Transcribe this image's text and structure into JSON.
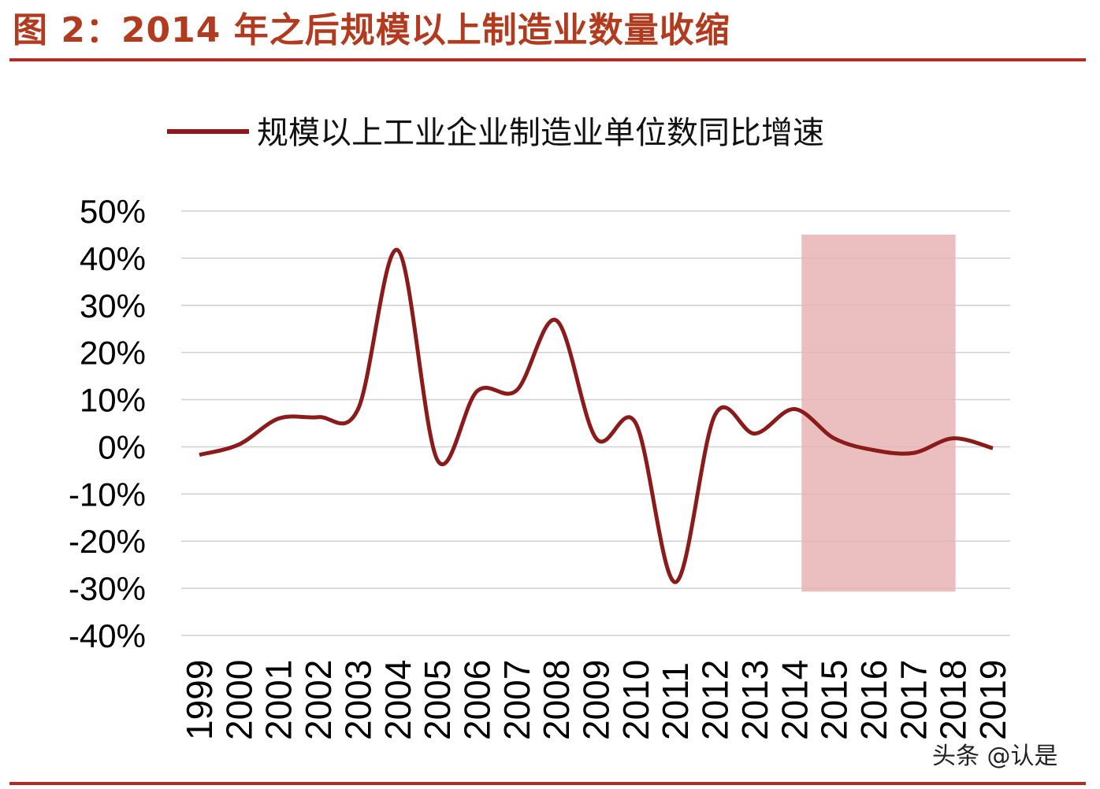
{
  "header": {
    "title": "图 2：2014 年之后规模以上制造业数量收缩"
  },
  "watermark": "头条 @认是",
  "chart_data": {
    "type": "line",
    "title": "",
    "legend": {
      "entries": [
        "规模以上工业企业制造业单位数同比增速"
      ],
      "placement": "top"
    },
    "categories": [
      "1999",
      "2000",
      "2001",
      "2002",
      "2003",
      "2004",
      "2005",
      "2006",
      "2007",
      "2008",
      "2009",
      "2010",
      "2011",
      "2012",
      "2013",
      "2014",
      "2015",
      "2016",
      "2017",
      "2018",
      "2019"
    ],
    "series": [
      {
        "name": "规模以上工业企业制造业单位数同比增速",
        "color": "#8b1a1a",
        "values": [
          -1.7,
          0.5,
          6.0,
          6.3,
          8.0,
          41.7,
          -2.8,
          11.8,
          12.0,
          26.8,
          1.8,
          5.0,
          -28.7,
          6.8,
          2.8,
          8.0,
          1.8,
          -0.7,
          -1.3,
          1.8,
          -0.3
        ]
      }
    ],
    "highlight_band": {
      "x_from": "2014",
      "x_to": "2018",
      "y_from": -30.7,
      "y_to": 45,
      "color": "#e8b4b4"
    },
    "yticks": [
      "50%",
      "40%",
      "30%",
      "20%",
      "10%",
      "0%",
      "-10%",
      "-20%",
      "-30%",
      "-40%"
    ],
    "ytick_values": [
      50,
      40,
      30,
      20,
      10,
      0,
      -10,
      -20,
      -30,
      -40
    ],
    "ylim": [
      -40,
      50
    ],
    "xlabel": "",
    "ylabel": "",
    "grid": true
  }
}
